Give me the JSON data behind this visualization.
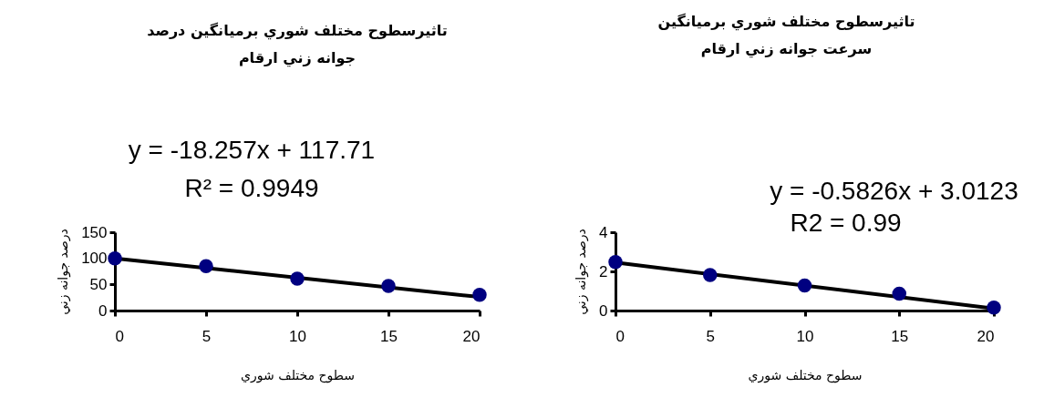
{
  "chart_data": [
    {
      "type": "scatter",
      "title": "تاثيرسطوح مختلف شوري برميانگين درصد\nجوانه زني ارقام",
      "xlabel": "سطوح  مختلف شوري",
      "ylabel": "درصد جوانه زني",
      "annotations": [
        "y = -18.257x + 117.71",
        "R² = 0.9949"
      ],
      "xlim": [
        0,
        20
      ],
      "xticks": [
        0,
        5,
        10,
        15,
        20
      ],
      "ylim": [
        0,
        150
      ],
      "yticks": [
        0,
        50,
        100,
        150
      ],
      "grid": false,
      "series": [
        {
          "color": "#000080",
          "marker": "circle",
          "x": [
            0,
            5,
            10,
            15,
            20
          ],
          "values": [
            100,
            85,
            61,
            47,
            30
          ]
        },
        {
          "type": "line",
          "color": "#000000",
          "x": [
            0,
            20
          ],
          "values": [
            100,
            26
          ]
        }
      ]
    },
    {
      "type": "scatter",
      "title": "تاثيرسطوح مختلف شوري برميانگين\nسرعت جوانه زني ارقام",
      "xlabel": "سطوح  مختلف شوري",
      "ylabel": "درصد جوانه زني",
      "annotations": [
        "y = -0.5826x + 3.0123",
        "R2 = 0.99"
      ],
      "xlim": [
        0,
        20
      ],
      "xticks": [
        0,
        5,
        10,
        15,
        20
      ],
      "ylim": [
        0,
        4
      ],
      "yticks": [
        0,
        2,
        4
      ],
      "grid": false,
      "series": [
        {
          "color": "#000080",
          "marker": "circle",
          "x": [
            0,
            5,
            10,
            15,
            20
          ],
          "values": [
            2.48,
            1.81,
            1.28,
            0.86,
            0.15
          ]
        },
        {
          "type": "line",
          "color": "#000000",
          "x": [
            0,
            20
          ],
          "values": [
            2.45,
            0.1
          ]
        }
      ]
    }
  ]
}
